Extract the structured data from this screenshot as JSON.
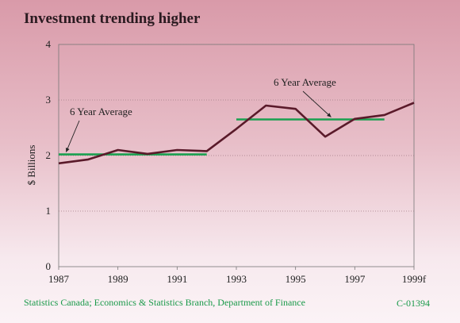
{
  "chart_data": {
    "type": "line",
    "title": "Investment trending higher",
    "ylabel": "$ Billions",
    "xlabel": "",
    "ylim": [
      0,
      4
    ],
    "yticks": [
      "0",
      "1",
      "2",
      "3",
      "4"
    ],
    "x_tick_labels": [
      "1987",
      "1989",
      "1991",
      "1993",
      "1995",
      "1997",
      "1999f"
    ],
    "x": [
      1987,
      1988,
      1989,
      1990,
      1991,
      1992,
      1993,
      1994,
      1995,
      1996,
      1997,
      1998,
      1999
    ],
    "series": [
      {
        "values": [
          1.86,
          1.93,
          2.1,
          2.03,
          2.1,
          2.08,
          2.48,
          2.9,
          2.84,
          2.34,
          2.66,
          2.73,
          2.95
        ]
      }
    ],
    "averages": [
      {
        "label": "6 Year Average",
        "x_start": 1987,
        "x_end": 1992,
        "value": 2.02
      },
      {
        "label": "6 Year Average",
        "x_start": 1993,
        "x_end": 1998,
        "value": 2.65
      }
    ],
    "grid": "horizontal dotted",
    "colors": {
      "line": "#5a1a2a",
      "average": "#1aa050"
    }
  },
  "footer": {
    "source": "Statistics Canada; Economics & Statistics Branch, Department of Finance",
    "code": "C-01394"
  }
}
